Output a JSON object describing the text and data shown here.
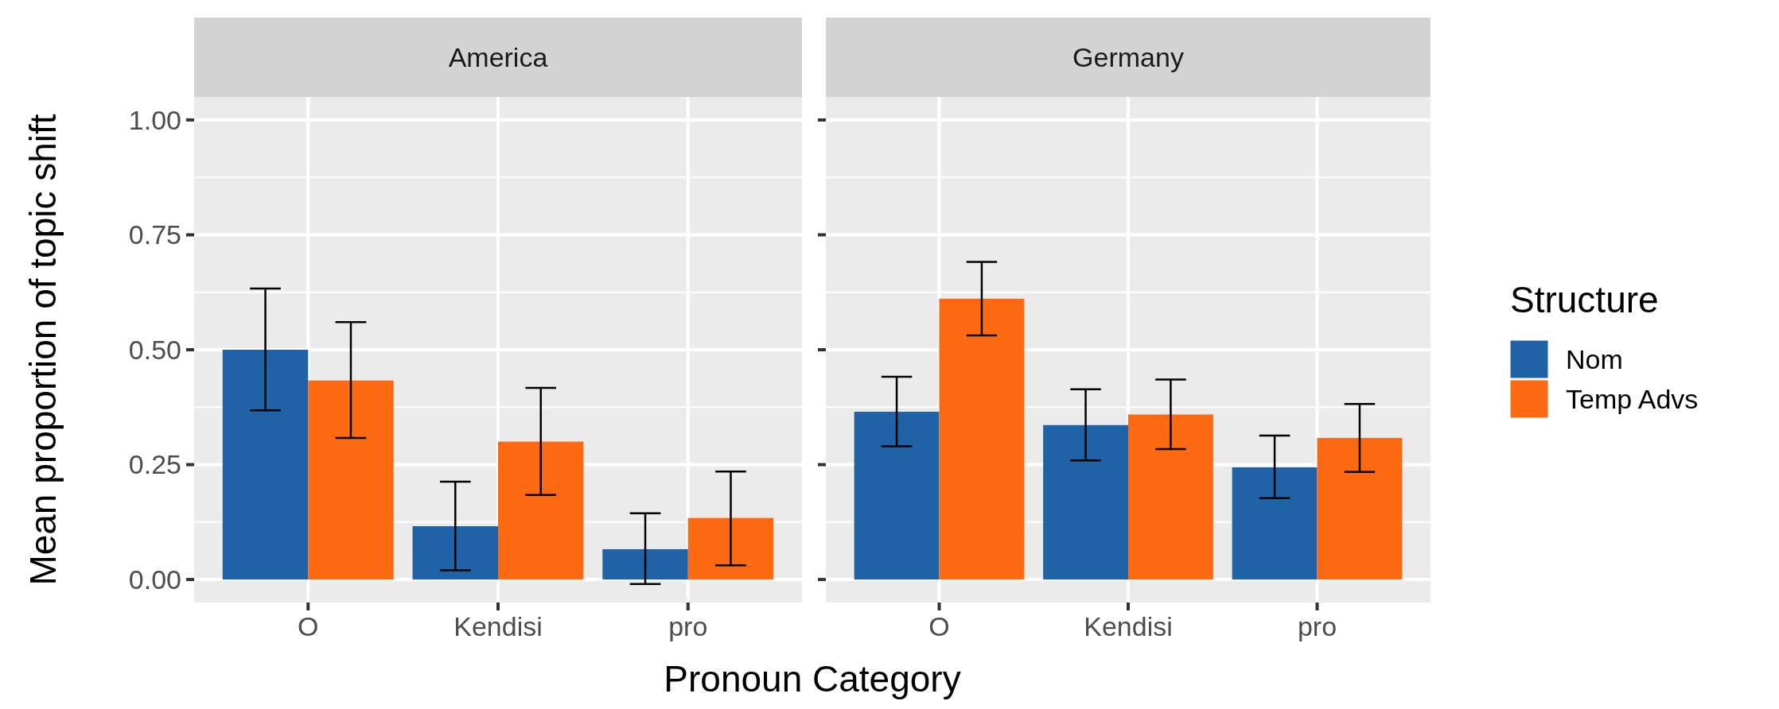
{
  "chart_data": [
    {
      "type": "bar",
      "title": "America",
      "xlabel": "Pronoun Category",
      "ylabel": "Mean proportion of topic shift",
      "categories": [
        "O",
        "Kendisi",
        "pro"
      ],
      "ylim": [
        -0.05,
        1.05
      ],
      "yticks": [
        {
          "value": 0,
          "label": "0.00"
        },
        0.25,
        {
          "value": 0.5,
          "label": "0.50"
        },
        0.75,
        {
          "value": 1,
          "label": "1.00"
        }
      ],
      "grid": true,
      "legend": false,
      "series": [
        {
          "color": "#1f62a5",
          "values": [
            0.5,
            0.116,
            0.066
          ],
          "errors": [
            [
              0.368,
              0.633
            ],
            [
              0.02,
              0.213
            ],
            [
              -0.01,
              0.144
            ]
          ]
        },
        {
          "color": "#fd6a11",
          "values": [
            0.433,
            0.3,
            0.134
          ],
          "errors": [
            [
              0.308,
              0.56
            ],
            [
              0.184,
              0.417
            ],
            [
              0.031,
              0.235
            ]
          ]
        }
      ]
    },
    {
      "type": "bar",
      "title": "Germany",
      "categories": [
        "O",
        "Kendisi",
        "pro"
      ],
      "ylim": [
        -0.05,
        1.05
      ],
      "yticks": [
        0,
        0.25,
        0.5,
        0.75,
        1
      ],
      "tick_labels": "x",
      "grid": true,
      "legend": "right",
      "legend_title": "Structure",
      "series": [
        {
          "name": "Nom",
          "color": "#1f62a5",
          "values": [
            0.365,
            0.336,
            0.244
          ],
          "errors": [
            [
              0.29,
              0.441
            ],
            [
              0.259,
              0.414
            ],
            [
              0.177,
              0.313
            ]
          ]
        },
        {
          "name": "Temp Advs",
          "color": "#fd6a11",
          "values": [
            0.611,
            0.359,
            0.308
          ],
          "errors": [
            [
              0.531,
              0.691
            ],
            [
              0.284,
              0.435
            ],
            [
              0.234,
              0.382
            ]
          ]
        }
      ]
    }
  ]
}
